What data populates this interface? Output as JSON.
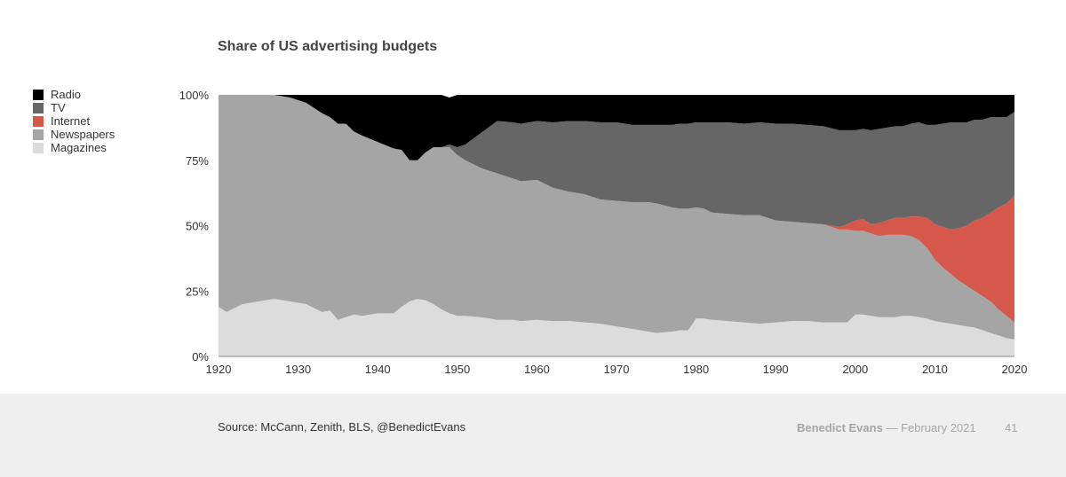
{
  "slide": {
    "source": "Source: McCann, Zenith, BLS, @BenedictEvans",
    "author": "Benedict Evans",
    "separator": " — ",
    "date": "February 2021",
    "page_number": "41"
  },
  "chart_data": {
    "type": "area",
    "stacked": true,
    "title": "Share of US advertising budgets",
    "xlabel": "",
    "ylabel": "",
    "xlim": [
      1920,
      2020
    ],
    "ylim": [
      0,
      100
    ],
    "x_ticks": [
      "1920",
      "1930",
      "1940",
      "1950",
      "1960",
      "1970",
      "1980",
      "1990",
      "2000",
      "2010",
      "2020"
    ],
    "y_ticks": [
      "0%",
      "25%",
      "50%",
      "75%",
      "100%"
    ],
    "legend_position": "left",
    "grid": false,
    "x": [
      1920,
      1921,
      1923,
      1925,
      1927,
      1929,
      1931,
      1933,
      1934,
      1935,
      1936,
      1937,
      1938,
      1940,
      1942,
      1943,
      1944,
      1945,
      1946,
      1947,
      1948,
      1949,
      1950,
      1951,
      1953,
      1955,
      1957,
      1958,
      1960,
      1962,
      1964,
      1966,
      1968,
      1970,
      1972,
      1974,
      1975,
      1977,
      1978,
      1979,
      1980,
      1981,
      1982,
      1984,
      1986,
      1988,
      1990,
      1992,
      1994,
      1996,
      1998,
      1999,
      2000,
      2001,
      2002,
      2003,
      2004,
      2005,
      2006,
      2007,
      2008,
      2009,
      2010,
      2011,
      2012,
      2013,
      2014,
      2015,
      2016,
      2017,
      2018,
      2019,
      2020
    ],
    "series": [
      {
        "name": "Magazines",
        "color": "#dcdcdc",
        "values": [
          19,
          17,
          20,
          21,
          22,
          21,
          20,
          17,
          17.5,
          14,
          15,
          16,
          15.5,
          16.5,
          16.5,
          19,
          21,
          22,
          21.5,
          20,
          18,
          16.5,
          15.5,
          15.5,
          15,
          14,
          14,
          13.5,
          14,
          13.5,
          13.5,
          13,
          12.5,
          11.5,
          10.5,
          9.5,
          9,
          9.5,
          10,
          10,
          14.5,
          14.5,
          14,
          13.5,
          13,
          12.5,
          13,
          13.5,
          13.5,
          13,
          13,
          13,
          16,
          16,
          15.5,
          15,
          15,
          15,
          15.5,
          15.5,
          15,
          14.5,
          13.5,
          13,
          12.5,
          12,
          11.5,
          11,
          10,
          9,
          8,
          7,
          6.5
        ]
      },
      {
        "name": "Newspapers",
        "color": "#a5a5a5",
        "values": [
          81,
          83,
          80,
          79,
          78,
          78,
          77,
          76,
          74,
          75,
          74,
          70,
          69,
          65.5,
          63,
          60,
          54,
          53,
          56.5,
          60,
          62,
          63.5,
          61.5,
          59.5,
          57,
          56,
          54,
          53.5,
          53.5,
          51,
          49.5,
          49,
          47.5,
          48,
          48.5,
          49.5,
          49.5,
          47.5,
          46.5,
          46.5,
          42.5,
          42,
          41,
          41,
          41,
          41.5,
          39,
          38,
          37.5,
          37.5,
          35.5,
          35.5,
          32,
          32,
          31.5,
          31,
          31.5,
          31.5,
          31,
          30.5,
          29.5,
          27,
          23.5,
          21,
          19,
          17,
          15.5,
          14,
          13,
          12,
          10,
          8.5,
          6.5
        ]
      },
      {
        "name": "Internet",
        "color": "#d6584a",
        "values": [
          0,
          0,
          0,
          0,
          0,
          0,
          0,
          0,
          0,
          0,
          0,
          0,
          0,
          0,
          0,
          0,
          0,
          0,
          0,
          0,
          0,
          0,
          0,
          0,
          0,
          0,
          0,
          0,
          0,
          0,
          0,
          0,
          0,
          0,
          0,
          0,
          0,
          0,
          0,
          0,
          0,
          0,
          0,
          0,
          0,
          0,
          0,
          0,
          0,
          0,
          1,
          2,
          4,
          4.5,
          3.5,
          5,
          5.5,
          6.5,
          6.5,
          7.5,
          9,
          11.5,
          13.5,
          15.5,
          17,
          20,
          23,
          27,
          30,
          34,
          39,
          43,
          48.5
        ]
      },
      {
        "name": "TV",
        "color": "#666666",
        "values": [
          0,
          0,
          0,
          0,
          0,
          0,
          0,
          0,
          0,
          0,
          0,
          0,
          0,
          0,
          0,
          0,
          0,
          0,
          0,
          0,
          0,
          1,
          3,
          6,
          13.5,
          20,
          21.5,
          22,
          22.5,
          25,
          27,
          28,
          29.5,
          30,
          29.5,
          29.5,
          30,
          31.5,
          32.5,
          32.5,
          32.5,
          33,
          34.5,
          35,
          35,
          35.5,
          37,
          37.5,
          37.5,
          37.5,
          37,
          36,
          34.5,
          34.5,
          36,
          36,
          35.5,
          35,
          35,
          35.5,
          36,
          35.5,
          38,
          39.5,
          41,
          40.5,
          39.5,
          38.5,
          37.5,
          36.5,
          34.5,
          33,
          32
        ]
      },
      {
        "name": "Radio",
        "color": "#000000",
        "values": [
          0,
          0,
          0,
          0,
          0,
          1,
          3,
          7,
          8.5,
          11,
          11,
          14,
          15.5,
          18,
          20.5,
          21,
          25,
          25,
          22,
          20,
          20,
          18,
          20,
          19,
          14.5,
          10,
          10.5,
          11,
          10,
          10.5,
          10,
          10,
          10.5,
          10.5,
          11.5,
          11.5,
          11.5,
          11.5,
          11,
          11,
          10.5,
          10.5,
          10.5,
          10.5,
          11,
          10.5,
          11,
          11,
          11.5,
          12,
          13.5,
          13.5,
          13.5,
          13,
          13.5,
          13,
          12.5,
          12,
          12,
          11,
          10.5,
          11.5,
          11.5,
          11,
          10.5,
          10.5,
          10.5,
          9.5,
          9.5,
          8.5,
          8.5,
          8.5,
          6.5
        ]
      }
    ]
  }
}
